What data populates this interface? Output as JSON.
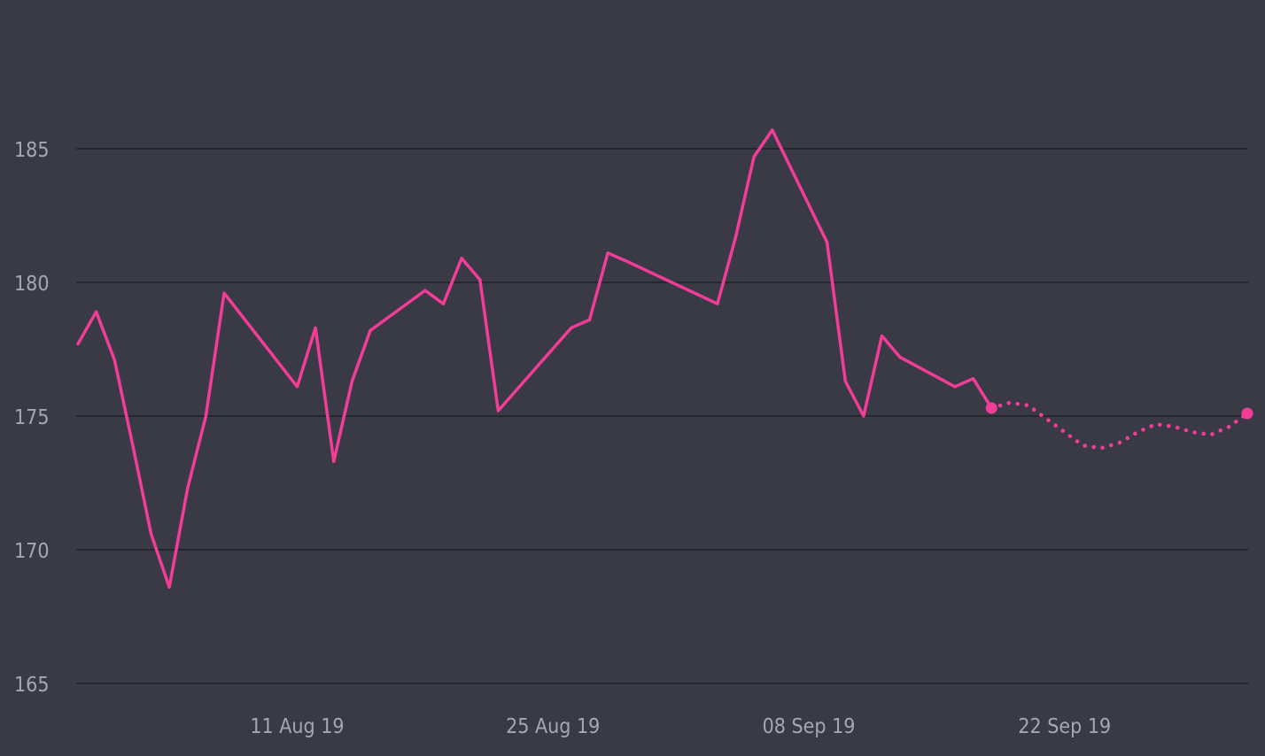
{
  "colors": {
    "background": "#3a3a46",
    "line": "#f23d97",
    "grid": "#26262d",
    "text": "#a6a6b4"
  },
  "chart_data": {
    "type": "line",
    "title": "",
    "xlabel": "",
    "ylabel": "",
    "ylim": [
      165,
      187
    ],
    "grid": true,
    "legend": "none",
    "x_axis_type": "date",
    "x_range": [
      "2019-07-30",
      "2019-10-02"
    ],
    "y_ticks": [
      "165",
      "170",
      "175",
      "180",
      "185"
    ],
    "x_ticks": [
      {
        "date": "2019-08-11",
        "label": "11 Aug 19"
      },
      {
        "date": "2019-08-25",
        "label": "25 Aug 19"
      },
      {
        "date": "2019-09-08",
        "label": "08 Sep 19"
      },
      {
        "date": "2019-09-22",
        "label": "22 Sep 19"
      }
    ],
    "series": [
      {
        "style": "solid",
        "points": [
          [
            "2019-07-30",
            177.7
          ],
          [
            "2019-07-31",
            178.9
          ],
          [
            "2019-08-01",
            177.1
          ],
          [
            "2019-08-02",
            173.9
          ],
          [
            "2019-08-03",
            170.6
          ],
          [
            "2019-08-04",
            168.6
          ],
          [
            "2019-08-05",
            172.3
          ],
          [
            "2019-08-06",
            175.0
          ],
          [
            "2019-08-07",
            179.6
          ],
          [
            "2019-08-11",
            176.1
          ],
          [
            "2019-08-12",
            178.3
          ],
          [
            "2019-08-13",
            173.3
          ],
          [
            "2019-08-14",
            176.3
          ],
          [
            "2019-08-15",
            178.2
          ],
          [
            "2019-08-18",
            179.7
          ],
          [
            "2019-08-19",
            179.2
          ],
          [
            "2019-08-20",
            180.9
          ],
          [
            "2019-08-21",
            180.1
          ],
          [
            "2019-08-22",
            175.2
          ],
          [
            "2019-08-26",
            178.3
          ],
          [
            "2019-08-27",
            178.6
          ],
          [
            "2019-08-28",
            181.1
          ],
          [
            "2019-08-29",
            180.8
          ],
          [
            "2019-09-03",
            179.2
          ],
          [
            "2019-09-04",
            181.7
          ],
          [
            "2019-09-05",
            184.7
          ],
          [
            "2019-09-06",
            185.7
          ],
          [
            "2019-09-09",
            181.5
          ],
          [
            "2019-09-10",
            176.3
          ],
          [
            "2019-09-11",
            175.0
          ],
          [
            "2019-09-12",
            178.0
          ],
          [
            "2019-09-13",
            177.2
          ],
          [
            "2019-09-16",
            176.1
          ],
          [
            "2019-09-17",
            176.4
          ],
          [
            "2019-09-18",
            175.3
          ]
        ]
      },
      {
        "style": "dotted",
        "points": [
          [
            "2019-09-18",
            175.3
          ],
          [
            "2019-09-19",
            175.5
          ],
          [
            "2019-09-20",
            175.4
          ],
          [
            "2019-09-21",
            174.9
          ],
          [
            "2019-09-22",
            174.4
          ],
          [
            "2019-09-23",
            173.9
          ],
          [
            "2019-09-24",
            173.8
          ],
          [
            "2019-09-25",
            174.0
          ],
          [
            "2019-09-26",
            174.4
          ],
          [
            "2019-09-27",
            174.7
          ],
          [
            "2019-09-28",
            174.6
          ],
          [
            "2019-09-29",
            174.4
          ],
          [
            "2019-09-30",
            174.3
          ],
          [
            "2019-10-01",
            174.6
          ],
          [
            "2019-10-02",
            175.1
          ]
        ]
      }
    ],
    "markers": [
      [
        "2019-09-18",
        175.3
      ],
      [
        "2019-10-02",
        175.1
      ]
    ]
  }
}
